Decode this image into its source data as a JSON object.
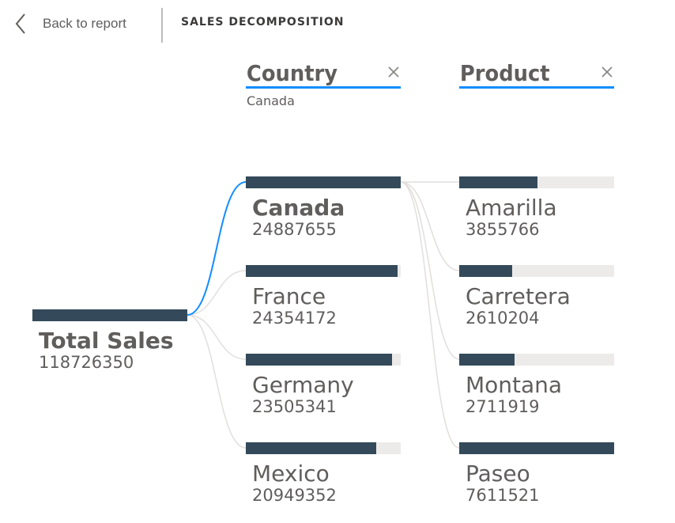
{
  "header": {
    "back_label": "Back to report",
    "title": "SALES DECOMPOSITION"
  },
  "levels": [
    {
      "title": "Country",
      "selected": "Canada"
    },
    {
      "title": "Product",
      "selected": ""
    }
  ],
  "root": {
    "label": "Total Sales",
    "value": "118726350",
    "fill": 1.0
  },
  "countries": [
    {
      "label": "Canada",
      "value": "24887655",
      "fill": 1.0,
      "selected": true
    },
    {
      "label": "France",
      "value": "24354172",
      "fill": 0.9786,
      "selected": false
    },
    {
      "label": "Germany",
      "value": "23505341",
      "fill": 0.9445,
      "selected": false
    },
    {
      "label": "Mexico",
      "value": "20949352",
      "fill": 0.8418,
      "selected": false
    }
  ],
  "products": [
    {
      "label": "Amarilla",
      "value": "3855766",
      "fill": 0.5066
    },
    {
      "label": "Carretera",
      "value": "2610204",
      "fill": 0.3429
    },
    {
      "label": "Montana",
      "value": "2711919",
      "fill": 0.3563
    },
    {
      "label": "Paseo",
      "value": "7611521",
      "fill": 1.0
    }
  ],
  "colors": {
    "bar": "#344a5a",
    "track": "#edebe9",
    "accent": "#118dff",
    "link": "#e1dfdd",
    "text": "#605e5c"
  },
  "icons": {
    "back": "chevron-left-icon",
    "close": "close-icon"
  }
}
